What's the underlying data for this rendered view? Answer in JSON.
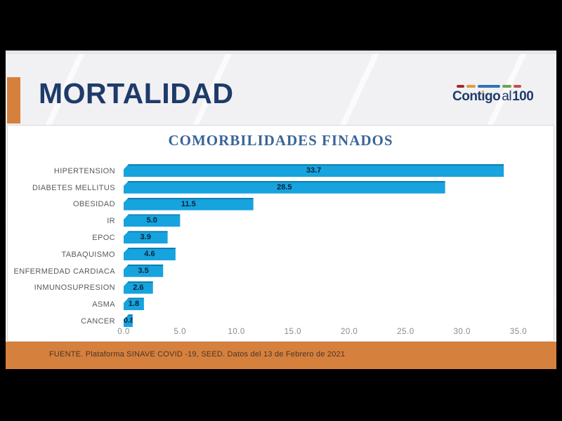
{
  "frame": {
    "bg": "#000000"
  },
  "slide": {
    "bg": "#F1F1F4"
  },
  "header": {
    "title": "MORTALIDAD",
    "title_color": "#1E3B69",
    "accent_color": "#D6803E"
  },
  "logo": {
    "part_cont": "Cont",
    "part_i": "ı",
    "part_go": "go",
    "part_al": "al",
    "part_100": "100",
    "text_color": "#1E3B69",
    "i_dot_color": "#E8A33D",
    "dash_colors": [
      "#9E2B25",
      "#DD9F3D",
      "#2E74B5",
      "#6DA34D",
      "#C0504D"
    ],
    "dash_widths": [
      11,
      13,
      32,
      13,
      11
    ]
  },
  "chart_data": {
    "type": "bar",
    "orientation": "horizontal",
    "title": "COMORBILIDADES FINADOS",
    "title_color": "#3A6597",
    "categories": [
      "HIPERTENSION",
      "DIABETES MELLITUS",
      "OBESIDAD",
      "IR",
      "EPOC",
      "TABAQUISMO",
      "ENFERMEDAD CARDIACA",
      "INMUNOSUPRESION",
      "ASMA",
      "CANCER"
    ],
    "values": [
      33.7,
      28.5,
      11.5,
      5.0,
      3.9,
      4.6,
      3.5,
      2.6,
      1.8,
      0.8
    ],
    "xlim": [
      0,
      35
    ],
    "x_ticks": [
      0,
      5,
      10,
      15,
      20,
      25,
      30,
      35
    ],
    "grid": false,
    "legend": false,
    "bar_color": "#16A3DE",
    "bar_side_color": "#0C76A6",
    "bar_top_color": "#0D7FB0",
    "value_label_color": "#0B2239",
    "category_label_color": "#595959",
    "tick_label_color": "#8A8A8A"
  },
  "footer": {
    "text": "FUENTE. Plataforma SINAVE COVID -19, SEED. Datos del 13 de Febrero de 2021",
    "bg": "#D6803E",
    "text_color": "#4A3526"
  }
}
